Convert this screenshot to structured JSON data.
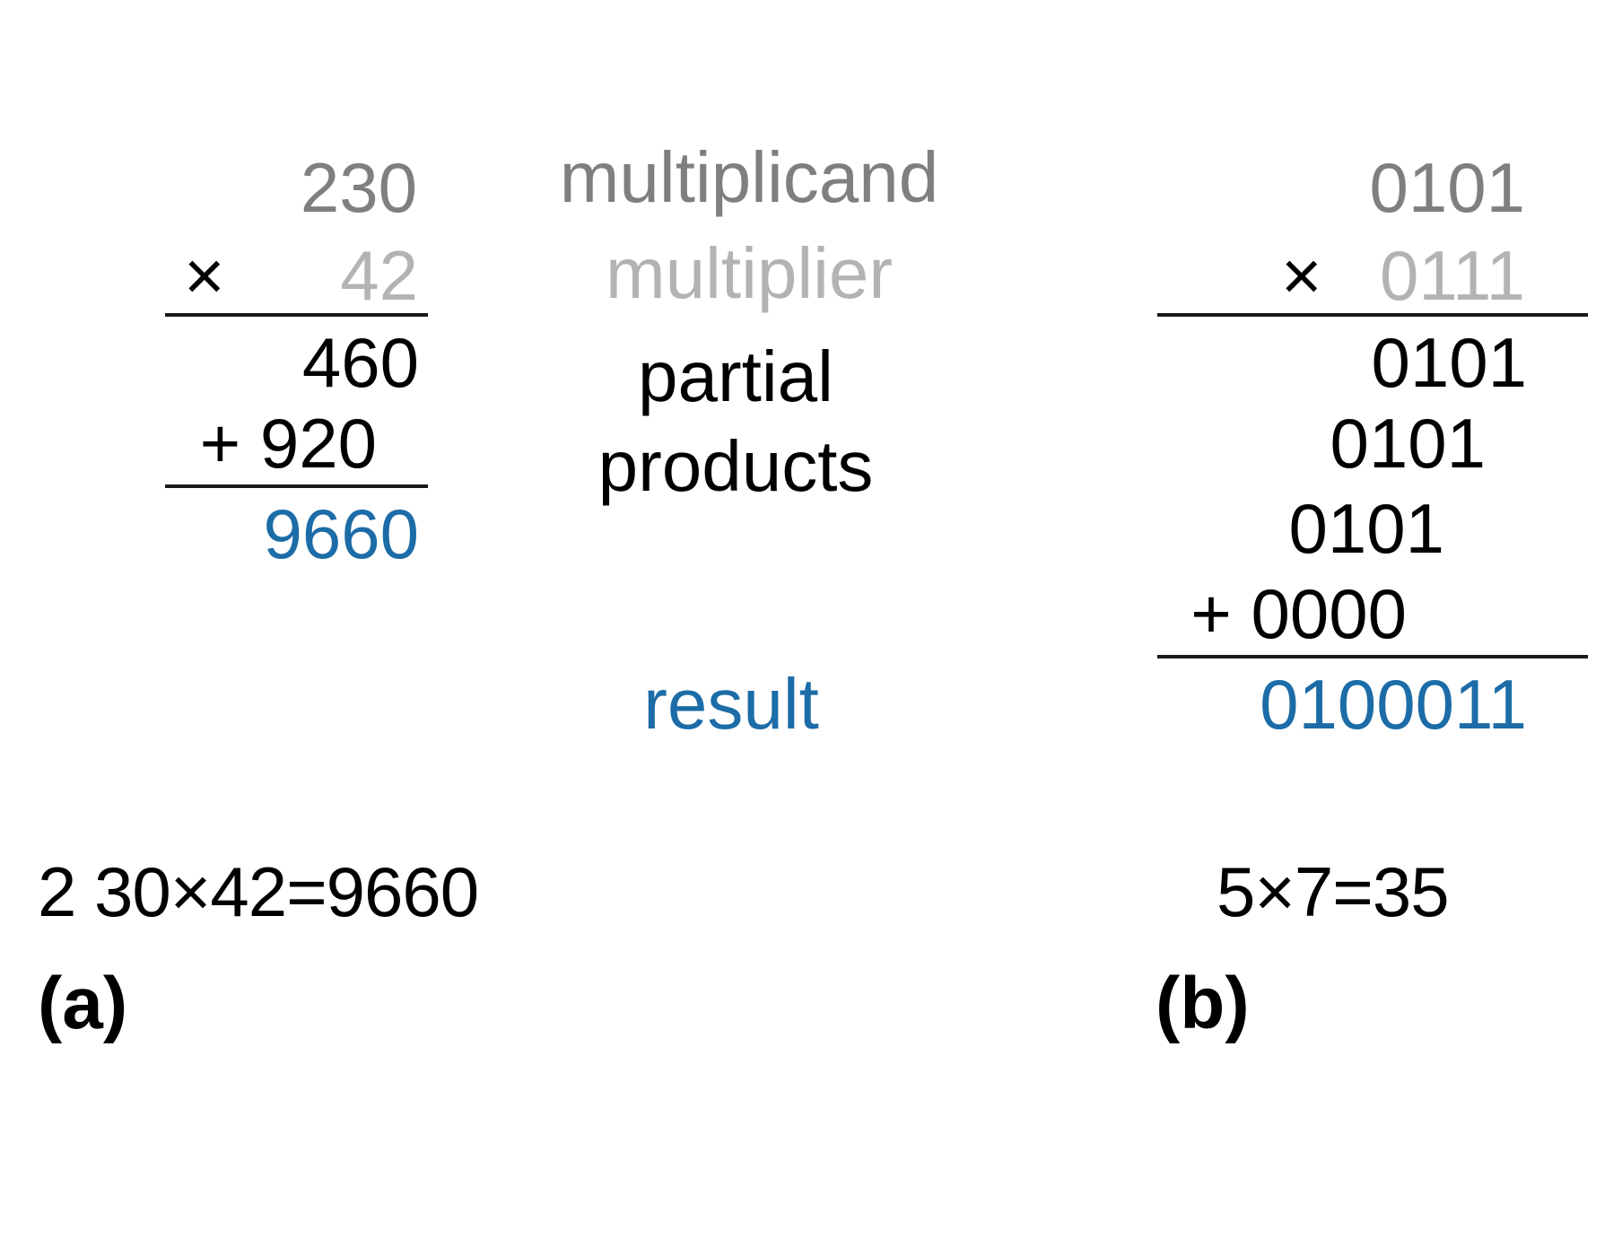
{
  "colors": {
    "multiplicand": "#7f7f7f",
    "multiplier": "#b3b3b3",
    "partial": "#000000",
    "result": "#1c6ca7"
  },
  "decimal": {
    "multiplicand": "230",
    "times_sign": "×",
    "multiplier": "42",
    "partial_products": [
      "460",
      "+ 920"
    ],
    "result": "9660",
    "equation": "2 30×42=9660",
    "caption": "(a)"
  },
  "labels": {
    "multiplicand": "multiplicand",
    "multiplier": "multiplier",
    "partial_line1": "partial",
    "partial_line2": "products",
    "result": "result"
  },
  "binary": {
    "multiplicand": "0101",
    "times_sign": "×",
    "multiplier": "0111",
    "partial_products": [
      "0101",
      "0101",
      "0101",
      "+ 0000"
    ],
    "result": "0100011",
    "equation": "5×7=35",
    "caption": "(b)"
  }
}
